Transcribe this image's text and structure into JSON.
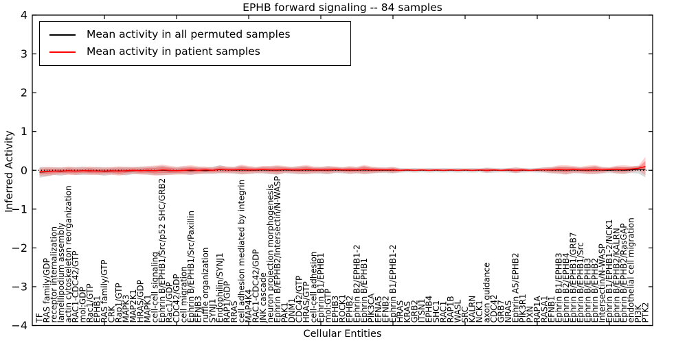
{
  "figure": {
    "title": "EPHB forward signaling -- 84 samples",
    "x_axis_label": "Cellular Entities",
    "y_axis_label": "Inferred Activity",
    "legend": [
      {
        "label": "Mean activity in all permuted samples",
        "color": "#000000"
      },
      {
        "label": "Mean activity in patient samples",
        "color": "#ff0000"
      }
    ]
  },
  "colors": {
    "permuted_line": "#000000",
    "patient_line": "#ff0000",
    "permuted_band": "rgba(130,130,130,0.30)",
    "patient_band_outer": "rgba(255,0,0,0.18)",
    "patient_band_inner": "rgba(255,0,0,0.28)",
    "axis": "#000000",
    "background": "#ffffff"
  },
  "chart_data": {
    "type": "line",
    "title": "EPHB forward signaling -- 84 samples",
    "xlabel": "Cellular Entities",
    "ylabel": "Inferred Activity",
    "ylim": [
      -4,
      4
    ],
    "ytick_values": [
      4,
      3,
      2,
      1,
      0,
      -1,
      -2,
      -3,
      -4
    ],
    "x_major_tick_categories": [
      9,
      19,
      29,
      39,
      49,
      59,
      69,
      79
    ],
    "grid": false,
    "zero_line": true,
    "legend_position": "upper left",
    "categories": [
      "TF",
      "RAS family/GDP",
      "receptor internalization",
      "lamellipodium assembly",
      "actin cytoskeleton reorganization",
      "RAC1-CDC42/GTP",
      "mol:GDP",
      "Rac1/GTP",
      "EPHB1",
      "RAS family/GTP",
      "CRK",
      "Rap1/GTP",
      "MAPK3",
      "MAP2K1",
      "HRAS/GDP",
      "MAPK1",
      "cell-cell signaling",
      "Ephrin B/EPHB1/Src/p52 SHC/GRB2",
      "Rac1/GDP",
      "CDC42/GDP",
      "cell migration",
      "Ephrin B/EPHB1/Src/Paxillin",
      "EFNB3",
      "ruffle organization",
      "SYNJ1",
      "Endophilin/SYNJ1",
      "RAP1/GDP",
      "RRAS",
      "cell adhesion mediated by integrin",
      "MAP4K4",
      "RAC1-CDC42/GDP",
      "JNK cascade",
      "neuron projection morphogenesis",
      "Ephrin B/EPHB2/Intersectin/N-WASP",
      "PAK1",
      "DNM1",
      "CDC42/GTP",
      "HRAS/GTP",
      "cell-cell adhesion",
      "Ephrin B1/EPHB1",
      "mol:GTP",
      "EPHB3",
      "ROCK1",
      "EPHB2",
      "Ephrin B2/EPHB1-2",
      "Ephrin B/EPHB1",
      "PIK3CA",
      "EFNA5",
      "EFNB2",
      "Ephrin B1/EPHB1-2",
      "HRAS",
      "KRAS",
      "GRB2",
      "ITSN1",
      "EPHB4",
      "SHC1",
      "RAC1",
      "RAP1B",
      "WASL",
      "SRC",
      "KALRN",
      "NCK1",
      "axon guidance",
      "CDC42",
      "GRB7",
      "NRAS",
      "Ephrin A5/EPHB2",
      "PIK3R1",
      "PXN",
      "RAP1A",
      "RASA1",
      "EFNB1",
      "Ephrin B1/EPHB3",
      "Ephrin B2/EPHB4",
      "Ephrin B/EPHB1/GRB7",
      "Ephrin B/EPHB1/Src",
      "Ephrin B/EPHB3",
      "Ephrin B/EPHB2",
      "Intersectin/N-WASP",
      "Ephrin B1/EPHB1-2/NCK1",
      "Ephrin B/EPHB2/KALRN",
      "Ephrin B/EPHB2/RasGAP",
      "endothelial cell migration",
      "PI3K",
      "PTK2"
    ],
    "series": [
      {
        "name": "Mean activity in all permuted samples",
        "color": "#000000",
        "values": [
          -0.05,
          -0.04,
          -0.02,
          -0.03,
          -0.01,
          -0.02,
          -0.01,
          -0.02,
          -0.01,
          -0.03,
          -0.02,
          -0.01,
          -0.02,
          -0.01,
          0,
          -0.01,
          -0.01,
          0,
          -0.01,
          -0.01,
          0,
          -0.01,
          0,
          -0.01,
          0,
          0.03,
          0.01,
          0,
          0.01,
          0,
          0,
          0.01,
          0,
          0,
          0.01,
          0,
          0,
          0.01,
          0,
          0,
          0,
          0.01,
          0,
          0,
          0,
          0.01,
          0,
          0,
          0,
          0,
          0,
          0,
          0,
          0,
          0,
          0,
          0,
          0,
          0,
          0,
          0,
          0,
          0,
          0,
          0,
          0,
          0,
          0,
          0,
          0,
          0.01,
          0,
          0.01,
          0,
          0.01,
          0,
          0,
          0.01,
          0,
          0,
          0.01,
          0,
          0.01,
          0.02,
          0.02
        ]
      },
      {
        "name": "Mean activity in patient samples",
        "color": "#ff0000",
        "values": [
          -0.04,
          -0.03,
          -0.02,
          -0.02,
          -0.01,
          -0.02,
          -0.01,
          -0.01,
          -0.02,
          -0.02,
          -0.01,
          -0.02,
          -0.01,
          0,
          -0.01,
          0,
          -0.01,
          0.01,
          0,
          -0.01,
          0,
          0.01,
          0,
          0.01,
          0,
          0.02,
          0.01,
          0.01,
          0.02,
          0.01,
          0.01,
          0.02,
          0.01,
          0.01,
          0.02,
          0.01,
          0.01,
          0.02,
          0.01,
          0.01,
          0.01,
          0.02,
          0.01,
          0.01,
          0.01,
          0.02,
          0.01,
          0.01,
          0.01,
          0.01,
          0,
          0.01,
          0,
          0.01,
          0,
          0.01,
          0,
          0.01,
          0,
          0.01,
          0,
          0.01,
          0,
          0.01,
          0,
          0.01,
          0,
          0.01,
          0,
          0.01,
          0.01,
          0.01,
          0.02,
          0.01,
          0.02,
          0.01,
          0.01,
          0.02,
          0.01,
          0.02,
          0.02,
          0.02,
          0.03,
          0.05,
          0.1
        ]
      }
    ],
    "bands": [
      {
        "name": "permuted-samples-range",
        "upper": [
          0.09,
          0.08,
          0.08,
          0.08,
          0.08,
          0.08,
          0.1,
          0.07,
          0.09,
          0.08,
          0.07,
          0.09,
          0.09,
          0.08,
          0.1,
          0.09,
          0.1,
          0.12,
          0.09,
          0.08,
          0.1,
          0.1,
          0.09,
          0.07,
          0.09,
          0.13,
          0.09,
          0.09,
          0.12,
          0.09,
          0.08,
          0.1,
          0.1,
          0.11,
          0.09,
          0.09,
          0.1,
          0.11,
          0.08,
          0.09,
          0.1,
          0.09,
          0.08,
          0.09,
          0.08,
          0.11,
          0.08,
          0.07,
          0.07,
          0.08,
          0.06,
          0.05,
          0.06,
          0.05,
          0.06,
          0.05,
          0.06,
          0.05,
          0.06,
          0.05,
          0.06,
          0.05,
          0.07,
          0.06,
          0.05,
          0.06,
          0.07,
          0.06,
          0.05,
          0.06,
          0.08,
          0.08,
          0.1,
          0.1,
          0.09,
          0.08,
          0.09,
          0.11,
          0.08,
          0.07,
          0.1,
          0.09,
          0.09,
          0.12,
          0.08
        ],
        "lower": [
          -0.19,
          -0.16,
          -0.12,
          -0.14,
          -0.1,
          -0.12,
          -0.12,
          -0.11,
          -0.11,
          -0.14,
          -0.11,
          -0.11,
          -0.13,
          -0.1,
          -0.1,
          -0.11,
          -0.12,
          -0.12,
          -0.11,
          -0.1,
          -0.1,
          -0.12,
          -0.09,
          -0.09,
          -0.09,
          -0.07,
          -0.07,
          -0.09,
          -0.1,
          -0.09,
          -0.08,
          -0.08,
          -0.1,
          -0.11,
          -0.07,
          -0.09,
          -0.1,
          -0.09,
          -0.08,
          -0.09,
          -0.1,
          -0.07,
          -0.08,
          -0.09,
          -0.08,
          -0.09,
          -0.08,
          -0.07,
          -0.07,
          -0.08,
          -0.06,
          -0.05,
          -0.06,
          -0.05,
          -0.06,
          -0.05,
          -0.06,
          -0.05,
          -0.06,
          -0.05,
          -0.06,
          -0.05,
          -0.07,
          -0.06,
          -0.05,
          -0.06,
          -0.07,
          -0.06,
          -0.05,
          -0.06,
          -0.06,
          -0.08,
          -0.08,
          -0.1,
          -0.07,
          -0.08,
          -0.09,
          -0.09,
          -0.08,
          -0.07,
          -0.08,
          -0.09,
          -0.07,
          -0.08,
          -0.18
        ]
      },
      {
        "name": "patient-samples-range",
        "upper": [
          0.06,
          0.09,
          0.08,
          0.07,
          0.1,
          0.08,
          0.08,
          0.1,
          0.08,
          0.07,
          0.09,
          0.1,
          0.09,
          0.09,
          0.09,
          0.11,
          0.12,
          0.15,
          0.12,
          0.09,
          0.11,
          0.13,
          0.1,
          0.1,
          0.08,
          0.12,
          0.1,
          0.09,
          0.15,
          0.11,
          0.09,
          0.11,
          0.11,
          0.13,
          0.11,
          0.09,
          0.11,
          0.14,
          0.1,
          0.09,
          0.11,
          0.1,
          0.08,
          0.11,
          0.09,
          0.14,
          0.1,
          0.08,
          0.07,
          0.09,
          0.04,
          0.04,
          0.03,
          0.03,
          0.03,
          0.03,
          0.03,
          0.03,
          0.03,
          0.03,
          0.03,
          0.03,
          0.06,
          0.04,
          0.03,
          0.05,
          0.07,
          0.05,
          0.03,
          0.05,
          0.07,
          0.09,
          0.13,
          0.13,
          0.11,
          0.09,
          0.12,
          0.14,
          0.09,
          0.08,
          0.12,
          0.13,
          0.11,
          0.11,
          0.35
        ],
        "lower": [
          -0.14,
          -0.15,
          -0.12,
          -0.11,
          -0.12,
          -0.12,
          -0.1,
          -0.12,
          -0.12,
          -0.11,
          -0.11,
          -0.14,
          -0.11,
          -0.09,
          -0.11,
          -0.11,
          -0.14,
          -0.13,
          -0.12,
          -0.11,
          -0.11,
          -0.11,
          -0.1,
          -0.08,
          -0.08,
          -0.08,
          -0.08,
          -0.07,
          -0.11,
          -0.09,
          -0.07,
          -0.07,
          -0.09,
          -0.11,
          -0.07,
          -0.07,
          -0.09,
          -0.1,
          -0.08,
          -0.07,
          -0.09,
          -0.06,
          -0.06,
          -0.09,
          -0.07,
          -0.1,
          -0.08,
          -0.06,
          -0.05,
          -0.07,
          -0.04,
          -0.02,
          -0.03,
          -0.01,
          -0.03,
          -0.01,
          -0.03,
          -0.01,
          -0.03,
          -0.01,
          -0.03,
          -0.01,
          -0.06,
          -0.02,
          -0.03,
          -0.03,
          -0.07,
          -0.03,
          -0.03,
          -0.03,
          -0.05,
          -0.07,
          -0.09,
          -0.11,
          -0.07,
          -0.07,
          -0.1,
          -0.1,
          -0.07,
          -0.04,
          -0.08,
          -0.09,
          -0.05,
          -0.01,
          -0.12
        ]
      }
    ]
  }
}
